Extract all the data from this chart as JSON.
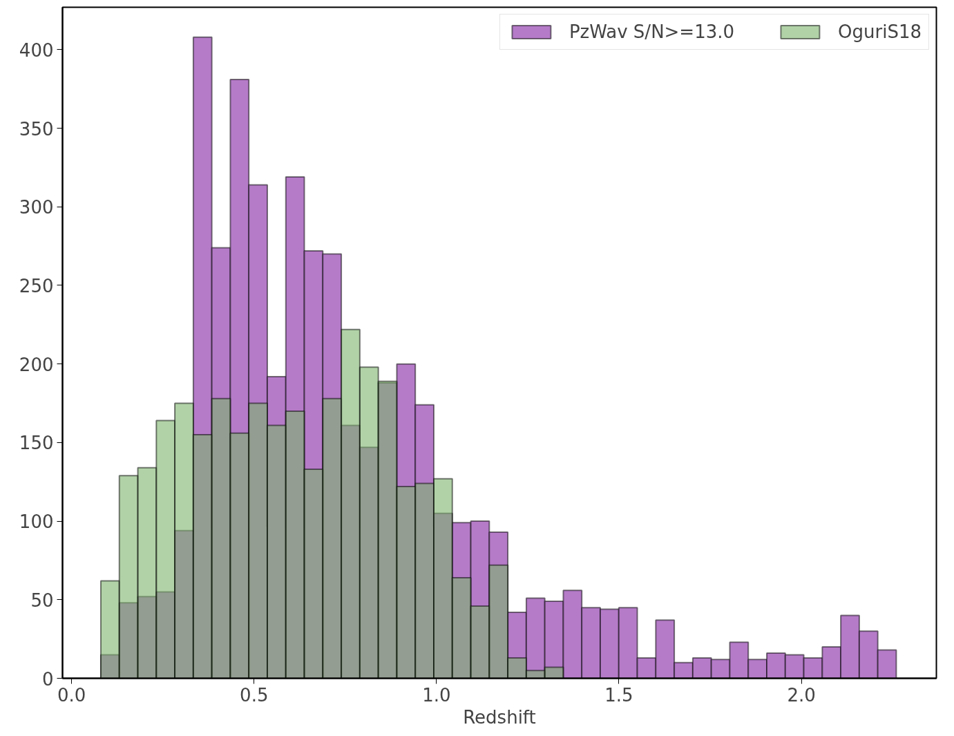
{
  "chart_data": {
    "type": "histogram",
    "xlabel": "Redshift",
    "bins": [
      0.08,
      0.1307,
      0.1814,
      0.2321,
      0.2828,
      0.3335,
      0.3842,
      0.4349,
      0.4856,
      0.5363,
      0.587,
      0.6377,
      0.6884,
      0.7391,
      0.7898,
      0.8405,
      0.8912,
      0.9419,
      0.9926,
      1.0433,
      1.094,
      1.1447,
      1.1954,
      1.2461,
      1.2968,
      1.3475,
      1.3982,
      1.4489,
      1.4996,
      1.5503,
      1.601,
      1.6517,
      1.7024,
      1.7531,
      1.8038,
      1.8545,
      1.9052,
      1.9559,
      2.0066,
      2.0573,
      2.108,
      2.1587,
      2.2094,
      2.2601
    ],
    "series": [
      {
        "name": "PzWav S/N>=13.0",
        "color": "#b57bc8",
        "values": [
          15,
          48,
          52,
          55,
          94,
          408,
          274,
          381,
          314,
          192,
          319,
          272,
          270,
          161,
          147,
          188,
          200,
          174,
          105,
          99,
          100,
          93,
          42,
          51,
          49,
          56,
          45,
          44,
          45,
          13,
          37,
          10,
          13,
          12,
          23,
          12,
          16,
          15,
          13,
          20,
          40,
          30,
          18
        ]
      },
      {
        "name": "OguriS18",
        "color": "#7db46c",
        "values": [
          62,
          129,
          134,
          164,
          175,
          155,
          178,
          156,
          175,
          161,
          170,
          133,
          178,
          222,
          198,
          189,
          122,
          124,
          127,
          64,
          46,
          72,
          13,
          5,
          7,
          0,
          0,
          0,
          0,
          0,
          0,
          0,
          0,
          0,
          0,
          0,
          0,
          0,
          0,
          0,
          0,
          0,
          0
        ]
      }
    ],
    "xlim": [
      -0.025,
      2.37
    ],
    "ylim": [
      0,
      427
    ],
    "xticks": [
      {
        "value": 0,
        "label": "0.0"
      },
      {
        "value": 0.5,
        "label": "0.5"
      },
      {
        "value": 1,
        "label": "1.0"
      },
      {
        "value": 1.5,
        "label": "1.5"
      },
      {
        "value": 2,
        "label": "2.0"
      }
    ],
    "yticks": [
      0,
      50,
      100,
      150,
      200,
      250,
      300,
      350,
      400
    ],
    "grid": false,
    "legend": "top right"
  }
}
